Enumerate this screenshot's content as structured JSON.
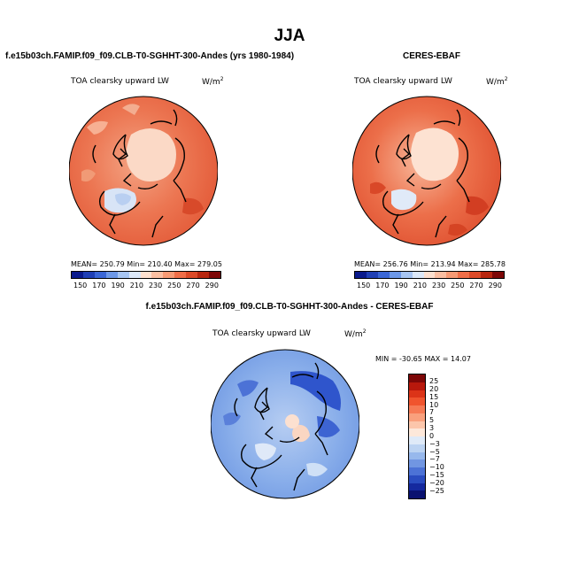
{
  "season": "JJA",
  "panels": {
    "model": {
      "title": "f.e15b03ch.FAMIP.f09_f09.CLB-T0-SGHHT-300-Andes (yrs 1980-1984)",
      "variable": "TOA clearsky upward LW",
      "units_main": "W/m",
      "units_sup": "2",
      "stats": "MEAN= 250.79  Min= 210.40  Max= 279.05"
    },
    "obs": {
      "title": "CERES-EBAF",
      "variable": "TOA clearsky upward LW",
      "units_main": "W/m",
      "units_sup": "2",
      "stats": "MEAN= 256.76  Min= 213.94  Max= 285.78"
    },
    "diff": {
      "title": "f.e15b03ch.FAMIP.f09_f09.CLB-T0-SGHHT-300-Andes - CERES-EBAF",
      "variable": "TOA clearsky upward LW",
      "units_main": "W/m",
      "units_sup": "2",
      "stats": "MIN = -30.65 MAX =  14.07"
    }
  },
  "colorbar_abs": {
    "ticks": [
      "150",
      "170",
      "190",
      "210",
      "230",
      "250",
      "270",
      "290"
    ],
    "colors": [
      "#0a1a8c",
      "#1f3fb5",
      "#3a66d6",
      "#6d98e8",
      "#a7c5f2",
      "#dce8f8",
      "#fde0cf",
      "#fbbfa2",
      "#f79a74",
      "#f06e48",
      "#dc4a28",
      "#b8260f",
      "#7d0707"
    ]
  },
  "colorbar_diff": {
    "ticks": [
      "25",
      "20",
      "15",
      "10",
      "7",
      "5",
      "3",
      "0",
      "−3",
      "−5",
      "−7",
      "−10",
      "−15",
      "−20",
      "−25"
    ],
    "colors": [
      "#7d0707",
      "#b8180c",
      "#dc3418",
      "#f0542e",
      "#f67a55",
      "#f9a07d",
      "#fcc6ab",
      "#fde8da",
      "#dfeaf8",
      "#bcd3f2",
      "#97b8ec",
      "#7196e2",
      "#4c72d6",
      "#2a4cc0",
      "#15299f",
      "#0a1270"
    ]
  },
  "map_colors": {
    "model_base": "#ea6a45",
    "obs_base": "#e8603c",
    "diff_base": "#8bb0ea",
    "land_line": "#000000"
  }
}
